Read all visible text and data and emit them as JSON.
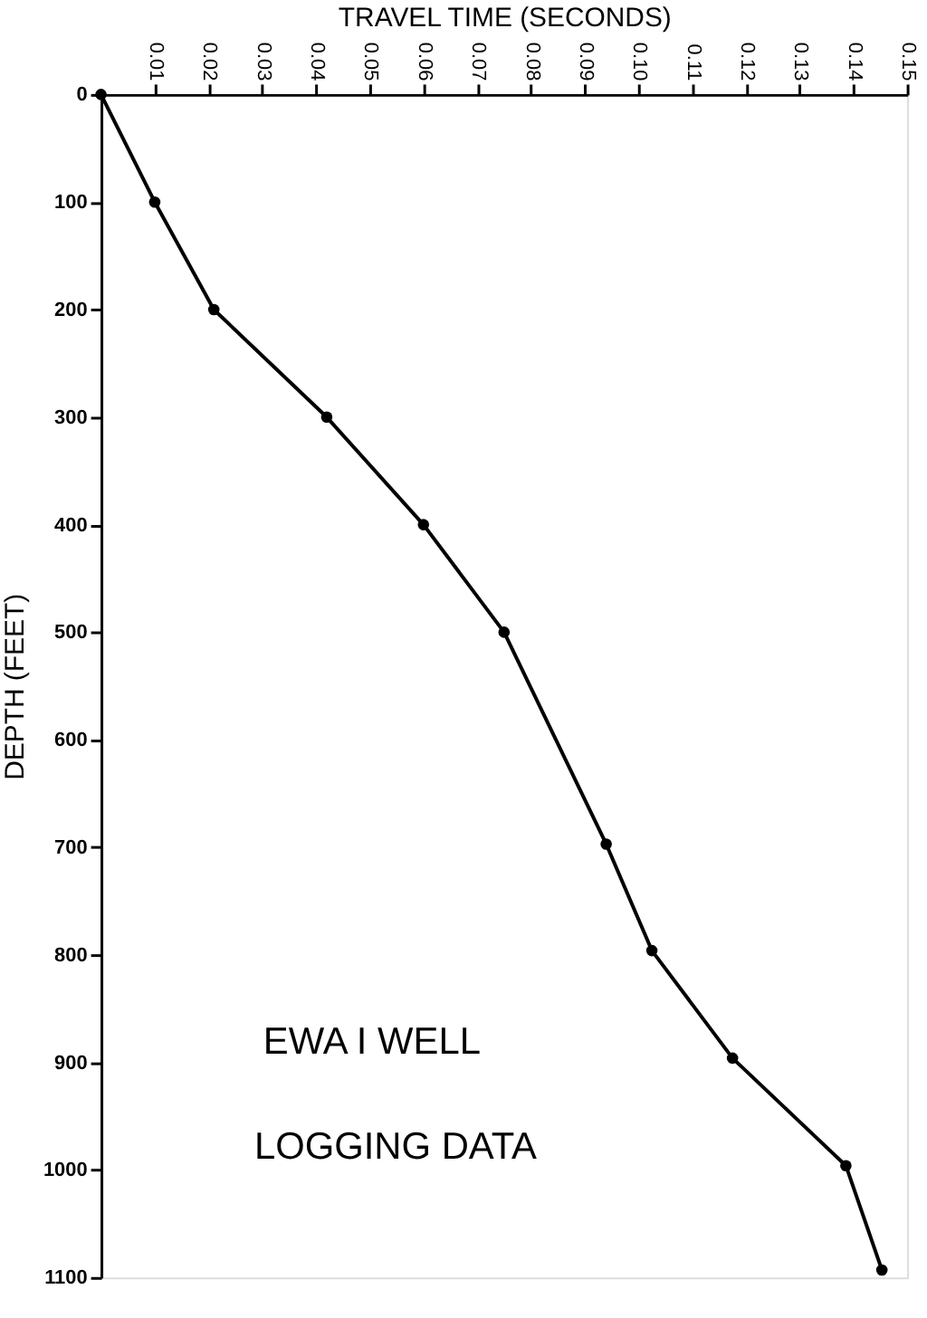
{
  "chart_data": {
    "type": "line",
    "xlabel": "TRAVEL TIME (SECONDS)",
    "ylabel": "DEPTH (FEET)",
    "annotations": [
      "EWA I WELL",
      "LOGGING DATA"
    ],
    "series": [
      {
        "color": "#000000",
        "x": [
          0,
          0.01,
          0.021,
          0.042,
          0.06,
          0.075,
          0.094,
          0.1025,
          0.1175,
          0.1386,
          0.1453
        ],
        "values": [
          0,
          100,
          200,
          300,
          400,
          500,
          697,
          796,
          896,
          996,
          1093
        ]
      }
    ],
    "xlim": [
      0,
      0.15
    ],
    "xticks": [
      0.01,
      0.02,
      0.03,
      0.04,
      0.05,
      0.06,
      0.07,
      0.08,
      0.09,
      {
        "value": 0.1,
        "label": "0.10"
      },
      0.11,
      0.12,
      0.13,
      0.14,
      0.15
    ],
    "ylim": [
      1100,
      0
    ],
    "yticks": [
      0,
      100,
      200,
      300,
      400,
      500,
      600,
      700,
      800,
      900,
      1000,
      1100
    ],
    "marker": "circle",
    "line_style": "solid",
    "grid": false
  }
}
